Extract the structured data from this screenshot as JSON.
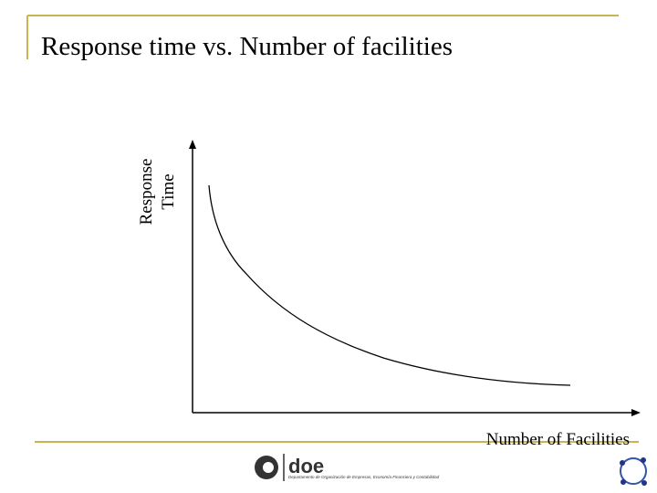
{
  "title": "Response time vs. Number of facilities",
  "diagram": {
    "y_axis_label": [
      "Response",
      "Time"
    ],
    "x_axis_label": "Number of Facilities"
  },
  "footer": {
    "logo": "doe",
    "department": "Departamento de Organización de Empresas, Economía Financiera y Contabilidad"
  }
}
